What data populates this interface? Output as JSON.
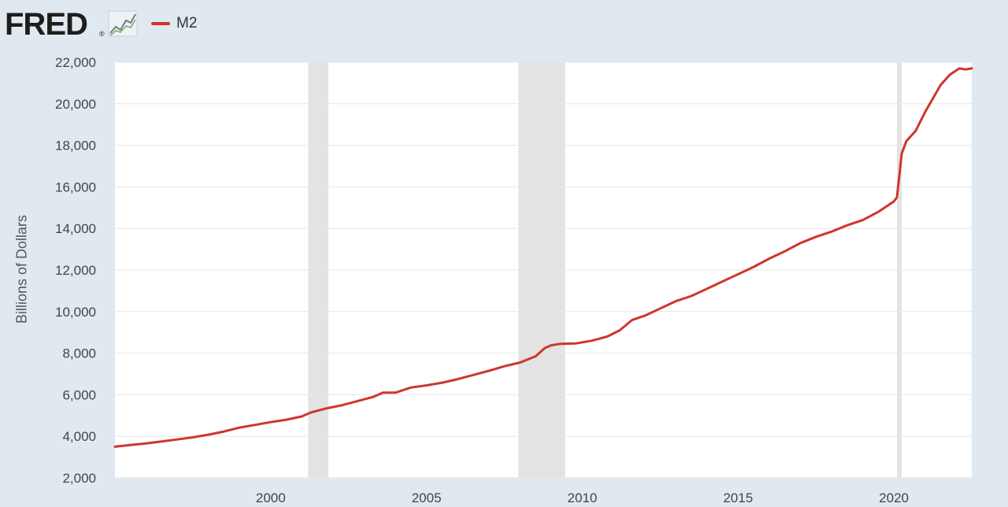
{
  "header": {
    "logo_text": "FRED",
    "logo_registered": "®",
    "logo_icon": "line-graph-icon"
  },
  "colors": {
    "background": "#e1e9f0",
    "plot_background": "#ffffff",
    "series": "#d0352b",
    "recession": "#e3e3e3",
    "grid": "#e6e6e6"
  },
  "chart_data": {
    "type": "line",
    "title": "",
    "xlabel": "",
    "ylabel": "Billions of Dollars",
    "legend": {
      "entries": [
        "M2"
      ],
      "placement": "top-left"
    },
    "grid": "horizontal",
    "xlim": [
      1995.0,
      2022.5
    ],
    "ylim": [
      2000,
      22000
    ],
    "x_ticks": [
      2000,
      2005,
      2010,
      2015,
      2020
    ],
    "x_tick_labels": [
      "2000",
      "2005",
      "2010",
      "2015",
      "2020"
    ],
    "y_ticks": [
      2000,
      4000,
      6000,
      8000,
      10000,
      12000,
      14000,
      16000,
      18000,
      20000,
      22000
    ],
    "y_tick_labels": [
      "2,000",
      "4,000",
      "6,000",
      "8,000",
      "10,000",
      "12,000",
      "14,000",
      "16,000",
      "18,000",
      "20,000",
      "22,000"
    ],
    "recessions": [
      [
        2001.2,
        2001.85
      ],
      [
        2007.95,
        2009.45
      ],
      [
        2020.1,
        2020.25
      ]
    ],
    "series": [
      {
        "name": "M2",
        "x": [
          1995.0,
          1995.5,
          1996.0,
          1996.5,
          1997.0,
          1997.5,
          1998.0,
          1998.5,
          1999.0,
          1999.5,
          2000.0,
          2000.5,
          2001.0,
          2001.3,
          2001.8,
          2002.3,
          2002.8,
          2003.3,
          2003.6,
          2004.0,
          2004.5,
          2005.0,
          2005.5,
          2006.0,
          2006.5,
          2007.0,
          2007.5,
          2008.0,
          2008.5,
          2008.8,
          2009.0,
          2009.3,
          2009.8,
          2010.3,
          2010.8,
          2011.2,
          2011.6,
          2012.0,
          2012.5,
          2013.0,
          2013.5,
          2014.0,
          2014.5,
          2015.0,
          2015.5,
          2016.0,
          2016.5,
          2017.0,
          2017.5,
          2018.0,
          2018.5,
          2019.0,
          2019.5,
          2020.0,
          2020.1,
          2020.25,
          2020.4,
          2020.7,
          2021.0,
          2021.5,
          2021.8,
          2022.1,
          2022.3,
          2022.5
        ],
        "values": [
          3500,
          3580,
          3660,
          3750,
          3850,
          3950,
          4080,
          4230,
          4420,
          4550,
          4680,
          4800,
          4960,
          5150,
          5350,
          5500,
          5700,
          5900,
          6100,
          6100,
          6350,
          6450,
          6580,
          6750,
          6950,
          7150,
          7370,
          7550,
          7850,
          8250,
          8380,
          8450,
          8470,
          8600,
          8800,
          9100,
          9600,
          9800,
          10150,
          10500,
          10750,
          11100,
          11450,
          11800,
          12150,
          12550,
          12900,
          13300,
          13600,
          13850,
          14150,
          14400,
          14800,
          15300,
          15500,
          17600,
          18200,
          18700,
          19600,
          20900,
          21400,
          21700,
          21650,
          21700
        ]
      }
    ]
  }
}
